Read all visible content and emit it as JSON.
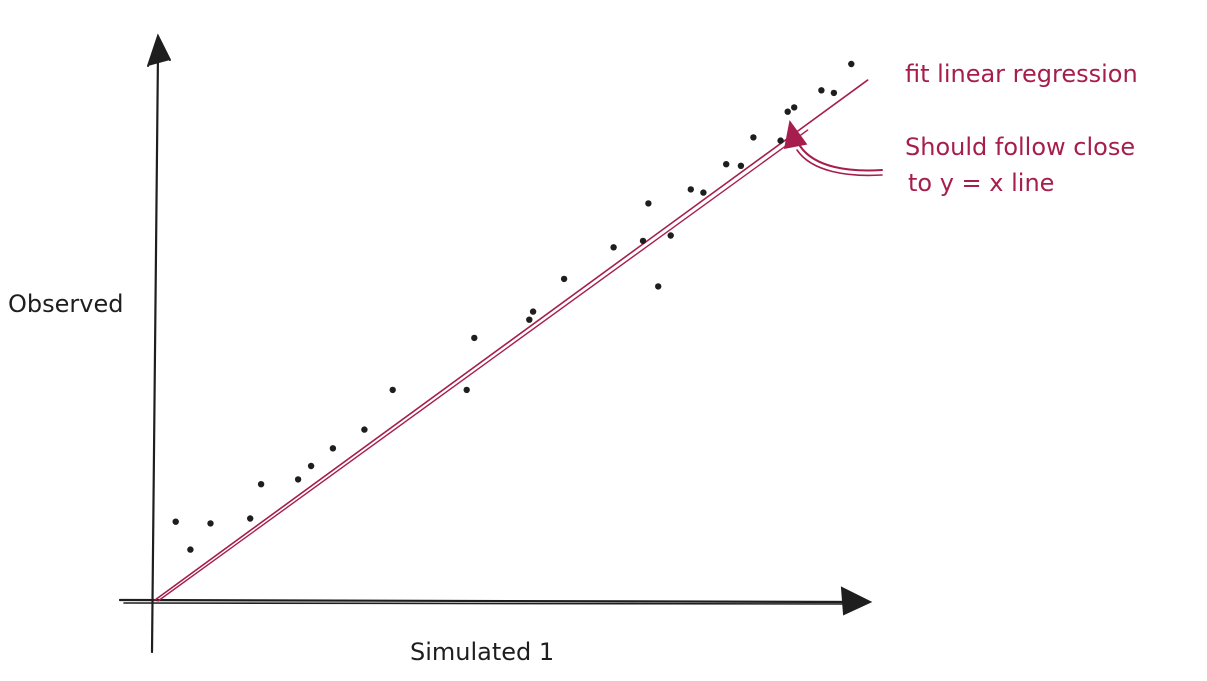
{
  "chart_data": {
    "type": "scatter",
    "title": "",
    "xlabel": "Simulated 1",
    "ylabel": "Observed",
    "grid": false,
    "legend": "none",
    "colors": {
      "points": "#1e1e1e",
      "axes": "#1e1e1e",
      "annotation": "#a61e4d"
    },
    "points": [
      {
        "x": 0.038,
        "y": 0.146
      },
      {
        "x": 0.065,
        "y": 0.094
      },
      {
        "x": 0.102,
        "y": 0.143
      },
      {
        "x": 0.175,
        "y": 0.152
      },
      {
        "x": 0.195,
        "y": 0.216
      },
      {
        "x": 0.263,
        "y": 0.225
      },
      {
        "x": 0.287,
        "y": 0.25
      },
      {
        "x": 0.327,
        "y": 0.283
      },
      {
        "x": 0.385,
        "y": 0.318
      },
      {
        "x": 0.437,
        "y": 0.392
      },
      {
        "x": 0.573,
        "y": 0.392
      },
      {
        "x": 0.587,
        "y": 0.489
      },
      {
        "x": 0.688,
        "y": 0.523
      },
      {
        "x": 0.695,
        "y": 0.538
      },
      {
        "x": 0.752,
        "y": 0.599
      },
      {
        "x": 0.843,
        "y": 0.658
      },
      {
        "x": 0.897,
        "y": 0.67
      },
      {
        "x": 0.925,
        "y": 0.585
      },
      {
        "x": 0.907,
        "y": 0.74
      },
      {
        "x": 0.948,
        "y": 0.68
      },
      {
        "x": 0.985,
        "y": 0.766
      },
      {
        "x": 1.008,
        "y": 0.76
      },
      {
        "x": 1.05,
        "y": 0.813
      },
      {
        "x": 1.077,
        "y": 0.81
      },
      {
        "x": 1.1,
        "y": 0.863
      },
      {
        "x": 1.15,
        "y": 0.857
      },
      {
        "x": 1.163,
        "y": 0.911
      },
      {
        "x": 1.175,
        "y": 0.919
      },
      {
        "x": 1.225,
        "y": 0.951
      },
      {
        "x": 1.248,
        "y": 0.946
      },
      {
        "x": 1.28,
        "y": 1.0
      }
    ],
    "regression_line": {
      "label": "fit linear regression",
      "from": {
        "x": 0.0,
        "y": 0.0
      },
      "to": {
        "x": 1.31,
        "y": 0.97
      }
    },
    "annotations": [
      {
        "text_lines": [
          "Should follow close",
          "to y = x line"
        ]
      }
    ]
  }
}
